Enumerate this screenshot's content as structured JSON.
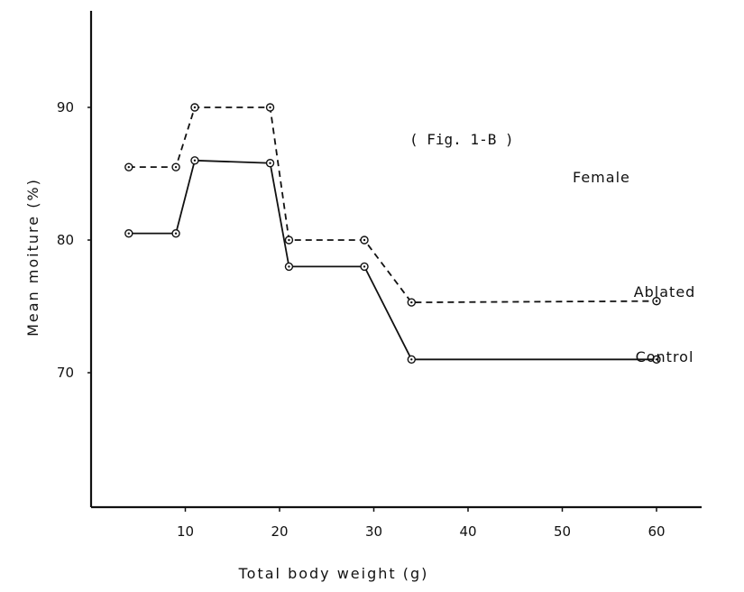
{
  "chart_data": {
    "type": "line",
    "title": "",
    "xlabel": "Total body weight (g)",
    "ylabel": "Mean moiture (%)",
    "x_ticks": [
      10,
      20,
      30,
      40,
      50,
      60
    ],
    "y_ticks": [
      70,
      80,
      90
    ],
    "xlim": [
      0,
      70
    ],
    "ylim": [
      57,
      97
    ],
    "grid": false,
    "annotations": [
      "( Fig. 1-B )",
      "Female"
    ],
    "series": [
      {
        "name": "Ablated",
        "line_style": "dashed",
        "color": "#111111",
        "x": [
          4,
          9,
          11,
          19,
          21,
          29,
          34,
          60
        ],
        "y": [
          85.5,
          85.5,
          90,
          90,
          80,
          80,
          75.3,
          75.4
        ]
      },
      {
        "name": "Control",
        "line_style": "solid",
        "color": "#111111",
        "x": [
          4,
          9,
          11,
          19,
          21,
          29,
          34,
          60
        ],
        "y": [
          80.5,
          80.5,
          86,
          85.8,
          78,
          78,
          71,
          71
        ]
      }
    ]
  }
}
